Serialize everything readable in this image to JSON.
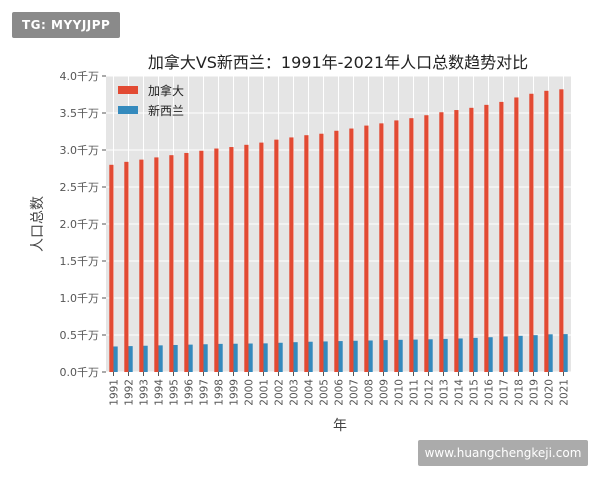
{
  "watermark_top": "TG: MYYJJPP",
  "watermark_bottom": "www.huangchengkeji.com",
  "chart_data": {
    "type": "bar",
    "title": "加拿大VS新西兰：1991年-2021年人口总数趋势对比",
    "xlabel": "年",
    "ylabel": "人口总数",
    "categories": [
      "1991",
      "1992",
      "1993",
      "1994",
      "1995",
      "1996",
      "1997",
      "1998",
      "1999",
      "2000",
      "2001",
      "2002",
      "2003",
      "2004",
      "2005",
      "2006",
      "2007",
      "2008",
      "2009",
      "2010",
      "2011",
      "2012",
      "2013",
      "2014",
      "2015",
      "2016",
      "2017",
      "2018",
      "2019",
      "2020",
      "2021"
    ],
    "series": [
      {
        "name": "加拿大",
        "color": "#e24a33",
        "values": [
          28.0,
          28.4,
          28.7,
          29.0,
          29.3,
          29.6,
          29.9,
          30.2,
          30.4,
          30.7,
          31.0,
          31.4,
          31.7,
          32.0,
          32.2,
          32.6,
          32.9,
          33.3,
          33.6,
          34.0,
          34.3,
          34.7,
          35.1,
          35.4,
          35.7,
          36.1,
          36.5,
          37.1,
          37.6,
          38.0,
          38.2
        ]
      },
      {
        "name": "新西兰",
        "color": "#348abd",
        "values": [
          3.45,
          3.5,
          3.55,
          3.6,
          3.65,
          3.7,
          3.75,
          3.8,
          3.82,
          3.85,
          3.87,
          3.95,
          4.03,
          4.09,
          4.13,
          4.18,
          4.22,
          4.26,
          4.31,
          4.35,
          4.38,
          4.42,
          4.47,
          4.53,
          4.61,
          4.7,
          4.8,
          4.89,
          4.98,
          5.09,
          5.12
        ]
      }
    ],
    "ylim": [
      0,
      40
    ],
    "yticks": [
      0,
      5,
      10,
      15,
      20,
      25,
      30,
      35,
      40
    ],
    "ytick_labels": [
      "0.0千万",
      "0.5千万",
      "1.0千万",
      "1.5千万",
      "2.0千万",
      "2.5千万",
      "3.0千万",
      "3.5千万",
      "4.0千万"
    ],
    "legend_position": "top-left",
    "grid": true,
    "background": "#e5e5e5"
  }
}
